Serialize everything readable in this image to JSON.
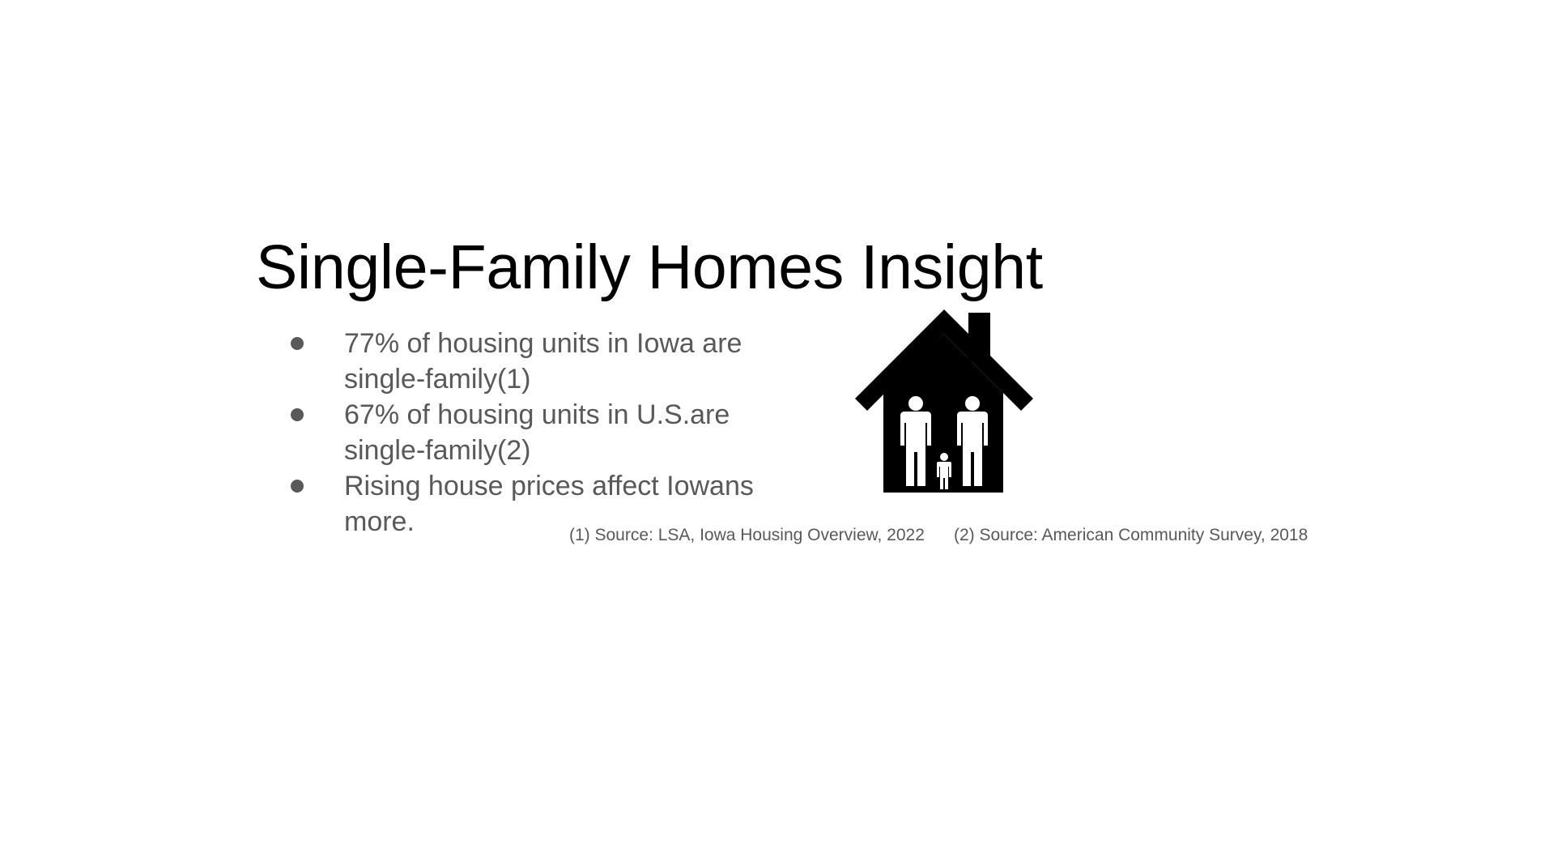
{
  "slide": {
    "title": "Single-Family Homes Insight",
    "bullets": [
      "77% of housing units in Iowa are single-family(1)",
      "67% of housing units in U.S.are single-family(2)",
      "Rising house prices affect Iowans more."
    ],
    "footnotes": [
      "(1) Source: LSA, Iowa Housing Overview, 2022",
      "(2) Source: American Community Survey, 2018"
    ],
    "icon": "family-house-icon"
  },
  "colors": {
    "title": "#000000",
    "body_text": "#595959",
    "icon": "#000000",
    "background": "#ffffff"
  }
}
